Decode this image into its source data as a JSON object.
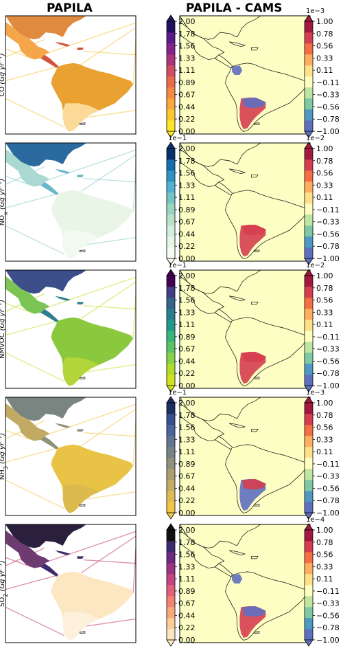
{
  "chart_data": {
    "type": "map-grid",
    "column_titles": [
      "PAPILA",
      "PAPILA - CAMS"
    ],
    "rows": [
      {
        "species_main": "CO",
        "species_sub": "",
        "units": "(Gg yr",
        "left_exponent": "",
        "right_exponent": "1e−3",
        "left_colors": [
          "#fde725",
          "#fcc82b",
          "#fba93a",
          "#f68a3f",
          "#ea6b48",
          "#d04e63",
          "#ae3479",
          "#84238a",
          "#5a1b8a",
          "#22115e"
        ],
        "right_colors": [
          "#5e6fbf",
          "#4e98c2",
          "#7ec8a4",
          "#bfe5a0",
          "#fefebd",
          "#fee08b",
          "#fdae61",
          "#f46d43",
          "#d53e4f",
          "#a2183f"
        ],
        "features": {
          "usa_fill": "#e08a3f",
          "mexico_fill": "#f4a648",
          "central_fill": "#d2553f",
          "south_america_fill": "#e9a232",
          "southern_cone_fill": "#fde4a8",
          "ships": "#f6c73d",
          "diff_colombia": "#5e6fbf",
          "diff_argentina": "#d53e4f",
          "diff_argentina_alt": "#5e6fbf"
        }
      },
      {
        "species_main": "NO",
        "species_sub": "x",
        "units": "(Gg yr",
        "left_exponent": "1e−1",
        "right_exponent": "1e−2",
        "left_colors": [
          "#f7fcf0",
          "#e8f6e6",
          "#d3eedb",
          "#b8e3c9",
          "#98d6c0",
          "#74c6c4",
          "#4fb3cf",
          "#2d94c3",
          "#1370b0",
          "#08306b"
        ],
        "right_colors": [
          "#5e6fbf",
          "#4e98c2",
          "#7ec8a4",
          "#bfe5a0",
          "#fefebd",
          "#fee08b",
          "#fdae61",
          "#f46d43",
          "#d53e4f",
          "#a2183f"
        ],
        "features": {
          "usa_fill": "#2a6a9e",
          "mexico_fill": "#a9d9d0",
          "central_fill": "#6ab5c9",
          "south_america_fill": "#e9f5e6",
          "southern_cone_fill": "#f3faf0",
          "ships": "#8ccccc",
          "diff_colombia": "#fefebd",
          "diff_argentina": "#d53e4f",
          "diff_argentina_alt": "#d53e4f"
        }
      },
      {
        "species_main": "NMVOC",
        "species_sub": "",
        "units": "(Gg yr",
        "left_exponent": "1e−1",
        "right_exponent": "1e−2",
        "left_colors": [
          "#d1e31c",
          "#b0dc2a",
          "#86d34a",
          "#5bc362",
          "#35b779",
          "#1f9a8a",
          "#2a7f8e",
          "#35638c",
          "#433e85",
          "#440154"
        ],
        "right_colors": [
          "#5e6fbf",
          "#4e98c2",
          "#7ec8a4",
          "#bfe5a0",
          "#fefebd",
          "#fee08b",
          "#fdae61",
          "#f46d43",
          "#d53e4f",
          "#a2183f"
        ],
        "features": {
          "usa_fill": "#3c4f8a",
          "mexico_fill": "#7cc555",
          "central_fill": "#2f7f8c",
          "south_america_fill": "#8ac83e",
          "southern_cone_fill": "#b9d73a",
          "ships": "#c8e02a",
          "diff_colombia": "#fefebd",
          "diff_argentina": "#d53e4f",
          "diff_argentina_alt": "#d53e4f"
        }
      },
      {
        "species_main": "NH",
        "species_sub": "3",
        "units": "(Gg yr",
        "left_exponent": "1e−1",
        "right_exponent": "1e−3",
        "left_colors": [
          "#f2c744",
          "#dfbb55",
          "#c5ad64",
          "#a99f70",
          "#8e927b",
          "#778485",
          "#607690",
          "#4a6699",
          "#334f8c",
          "#1b2f63"
        ],
        "right_colors": [
          "#5e6fbf",
          "#4e98c2",
          "#7ec8a4",
          "#bfe5a0",
          "#fefebd",
          "#fee08b",
          "#fdae61",
          "#f46d43",
          "#d53e4f",
          "#a2183f"
        ],
        "features": {
          "usa_fill": "#7a8480",
          "mexico_fill": "#c3aa63",
          "central_fill": "#8e927b",
          "south_america_fill": "#e9c346",
          "southern_cone_fill": "#d9b94f",
          "ships": "#f2c744",
          "diff_colombia": "#fefebd",
          "diff_argentina": "#5e6fbf",
          "diff_argentina_alt": "#d53e4f"
        }
      },
      {
        "species_main": "SO",
        "species_sub": "2",
        "units": "(Gg yr",
        "left_exponent": "",
        "right_exponent": "1e−4",
        "left_colors": [
          "#fde6c2",
          "#fbcc95",
          "#f8a978",
          "#f28271",
          "#e2607a",
          "#c54580",
          "#9c3482",
          "#6f2a80",
          "#402a6f",
          "#111111"
        ],
        "right_colors": [
          "#5e6fbf",
          "#4e98c2",
          "#7ec8a4",
          "#bfe5a0",
          "#fefebd",
          "#fee08b",
          "#fdae61",
          "#f46d43",
          "#d53e4f",
          "#a2183f"
        ],
        "features": {
          "usa_fill": "#2a1f3c",
          "mexico_fill": "#6e3b70",
          "central_fill": "#402a6f",
          "south_america_fill": "#fde6c2",
          "southern_cone_fill": "#fef2df",
          "ships": "#c2406e",
          "diff_colombia": "#5e6fbf",
          "diff_argentina": "#d53e4f",
          "diff_argentina_alt": "#5e6fbf"
        }
      }
    ],
    "left_ticks": [
      "0.00",
      "0.22",
      "0.44",
      "0.67",
      "0.89",
      "1.11",
      "1.33",
      "1.56",
      "1.78",
      "2.00"
    ],
    "right_ticks": [
      "−1.00",
      "−0.78",
      "−0.56",
      "−0.33",
      "−0.11",
      "0.11",
      "0.33",
      "0.56",
      "0.78",
      "1.00"
    ],
    "left_range": [
      0,
      2
    ],
    "right_range": [
      -1,
      1
    ],
    "diff_background": "#fdfec3",
    "units_exponent": "−1"
  }
}
